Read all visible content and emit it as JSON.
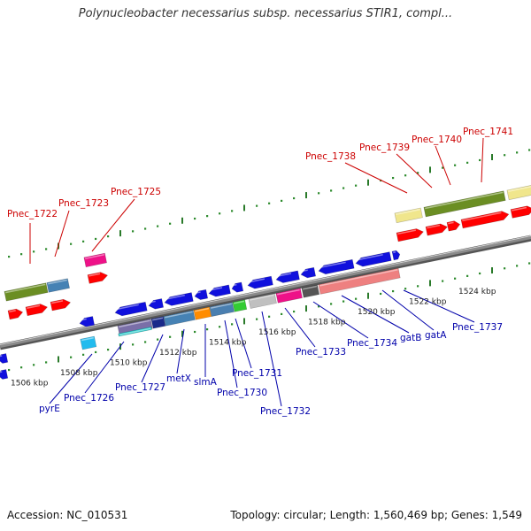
{
  "title": "Polynucleobacter necessarius subsp. necessarius STIR1, compl...",
  "footer": {
    "accession": "Accession: NC_010531",
    "summary": "Topology: circular; Length: 1,560,469 bp; Genes: 1,549"
  },
  "colors": {
    "backbone": "#8a8a8a",
    "tick_dots": "#2e8b2e",
    "tick_major": "#2a7a2a",
    "top_label": "#cc0000",
    "bottom_label": "#0000aa",
    "scale_label": "#222222"
  },
  "scale_ticks": [
    "1506 kbp",
    "1508 kbp",
    "1510 kbp",
    "1512 kbp",
    "1514 kbp",
    "1516 kbp",
    "1518 kbp",
    "1520 kbp",
    "1522 kbp",
    "1524 kbp"
  ],
  "top_labels": [
    "Pnec_1722",
    "Pnec_1723",
    "Pnec_1725",
    "Pnec_1738",
    "Pnec_1739",
    "Pnec_1740",
    "Pnec_1741"
  ],
  "bottom_labels": [
    "pyrE",
    "Pnec_1726",
    "Pnec_1727",
    "metX",
    "slmA",
    "Pnec_1730",
    "Pnec_1731",
    "Pnec_1732",
    "Pnec_1733",
    "Pnec_1734",
    "gatB",
    "gatA",
    "Pnec_1737"
  ]
}
